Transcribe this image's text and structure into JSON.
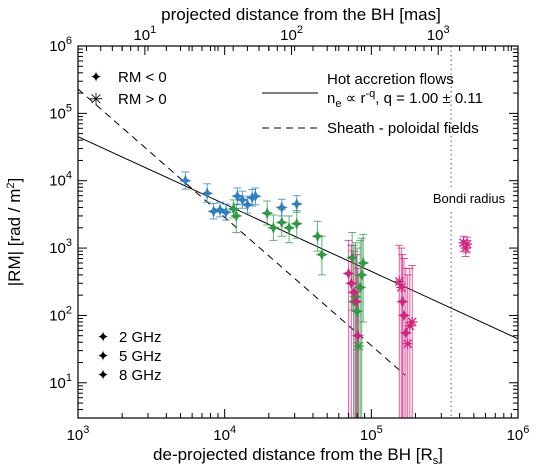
{
  "chart_data": {
    "type": "scatter",
    "title": "",
    "xlabel": "de-projected distance from the BH [R",
    "xlabel_sub": "s",
    "xlabel_end": "]",
    "x2label": "projected distance from the BH [mas]",
    "ylabel": "|RM| [rad / m",
    "ylabel_sup": "2",
    "ylabel_end": "]",
    "xscale": "log",
    "yscale": "log",
    "xlim": [
      1000,
      1000000
    ],
    "ylim": [
      3,
      1000000
    ],
    "x2lim": [
      3.5,
      3500
    ],
    "xticks": [
      {
        "value": 1000,
        "base": "10",
        "exp": "3"
      },
      {
        "value": 10000,
        "base": "10",
        "exp": "4"
      },
      {
        "value": 100000,
        "base": "10",
        "exp": "5"
      },
      {
        "value": 1000000,
        "base": "10",
        "exp": "6"
      }
    ],
    "yticks": [
      {
        "value": 10,
        "base": "10",
        "exp": "1"
      },
      {
        "value": 100,
        "base": "10",
        "exp": "2"
      },
      {
        "value": 1000,
        "base": "10",
        "exp": "3"
      },
      {
        "value": 10000,
        "base": "10",
        "exp": "4"
      },
      {
        "value": 100000,
        "base": "10",
        "exp": "5"
      },
      {
        "value": 1000000,
        "base": "10",
        "exp": "6"
      }
    ],
    "x2ticks": [
      {
        "value": 10,
        "base": "10",
        "exp": "1"
      },
      {
        "value": 100,
        "base": "10",
        "exp": "2"
      },
      {
        "value": 1000,
        "base": "10",
        "exp": "3"
      }
    ],
    "symbol_legend": [
      {
        "marker": "filled-star",
        "label": "RM < 0"
      },
      {
        "marker": "asterisk",
        "label": "RM > 0"
      }
    ],
    "line_legend": [
      {
        "style": "solid",
        "label": "Hot accretion flows",
        "formula": "n",
        "formula_sub": "e",
        "formula_rest": " ∝ r",
        "formula_sup": "-q",
        "formula_tail": ", q =  1.00 ± 0.11"
      },
      {
        "style": "dashed",
        "label": "Sheath - poloidal fields"
      }
    ],
    "color_legend": [
      {
        "label": "2 GHz",
        "color": "#d4237d"
      },
      {
        "label": "5 GHz",
        "color": "#2e9a46"
      },
      {
        "label": "8 GHz",
        "color": "#2f7fc1"
      }
    ],
    "bondi_label": "Bondi radius",
    "bondi_x": 350000,
    "model_lines": [
      {
        "style": "solid",
        "x": [
          1000,
          1000000
        ],
        "y": [
          45000,
          45
        ]
      },
      {
        "style": "dashed",
        "x": [
          1000,
          170000
        ],
        "y": [
          230000,
          13
        ]
      }
    ],
    "series": [
      {
        "name": "8 GHz",
        "color": "#2f7fc1",
        "points": [
          {
            "x": 5400,
            "y": 10000,
            "lo": 7500,
            "hi": 13500,
            "marker": "filled-star"
          },
          {
            "x": 7600,
            "y": 6500,
            "lo": 4800,
            "hi": 9000,
            "marker": "filled-star"
          },
          {
            "x": 8400,
            "y": 3500,
            "lo": 2700,
            "hi": 4600,
            "marker": "filled-star"
          },
          {
            "x": 9300,
            "y": 3700,
            "lo": 2900,
            "hi": 4800,
            "marker": "filled-star"
          },
          {
            "x": 10200,
            "y": 3400,
            "lo": 2600,
            "hi": 4500,
            "marker": "filled-star"
          },
          {
            "x": 12200,
            "y": 5900,
            "lo": 4400,
            "hi": 7800,
            "marker": "filled-star"
          },
          {
            "x": 13200,
            "y": 5200,
            "lo": 3900,
            "hi": 7000,
            "marker": "filled-star"
          },
          {
            "x": 14300,
            "y": 4400,
            "lo": 3300,
            "hi": 5900,
            "marker": "filled-star"
          },
          {
            "x": 15400,
            "y": 5600,
            "lo": 4200,
            "hi": 7400,
            "marker": "filled-star"
          },
          {
            "x": 16200,
            "y": 5900,
            "lo": 4400,
            "hi": 7800,
            "marker": "filled-star"
          },
          {
            "x": 24500,
            "y": 4000,
            "lo": 3000,
            "hi": 5300,
            "marker": "filled-star"
          },
          {
            "x": 31000,
            "y": 4500,
            "lo": 3400,
            "hi": 6000,
            "marker": "filled-star"
          }
        ]
      },
      {
        "name": "5 GHz",
        "color": "#2e9a46",
        "points": [
          {
            "x": 11500,
            "y": 3800,
            "lo": 2800,
            "hi": 5200,
            "marker": "filled-star"
          },
          {
            "x": 12000,
            "y": 3000,
            "lo": 1700,
            "hi": 4500,
            "marker": "filled-star"
          },
          {
            "x": 19500,
            "y": 3300,
            "lo": 2200,
            "hi": 5000,
            "marker": "filled-star"
          },
          {
            "x": 21500,
            "y": 2000,
            "lo": 1300,
            "hi": 3100,
            "marker": "filled-star"
          },
          {
            "x": 24500,
            "y": 2400,
            "lo": 1500,
            "hi": 3700,
            "marker": "filled-star"
          },
          {
            "x": 27500,
            "y": 2000,
            "lo": 1200,
            "hi": 3000,
            "marker": "filled-star"
          },
          {
            "x": 31000,
            "y": 2300,
            "lo": 1400,
            "hi": 3600,
            "marker": "filled-star"
          },
          {
            "x": 43000,
            "y": 1500,
            "lo": 900,
            "hi": 2500,
            "marker": "filled-star"
          },
          {
            "x": 46000,
            "y": 800,
            "lo": 400,
            "hi": 1500,
            "marker": "filled-star"
          },
          {
            "x": 74000,
            "y": 720,
            "lo": 120,
            "hi": 1700,
            "marker": "filled-star"
          },
          {
            "x": 76000,
            "y": 160,
            "lo": 3,
            "hi": 1100,
            "marker": "filled-star"
          },
          {
            "x": 78000,
            "y": 190,
            "lo": 3,
            "hi": 1200,
            "marker": "filled-star"
          },
          {
            "x": 80000,
            "y": 115,
            "lo": 3,
            "hi": 1000,
            "marker": "filled-star"
          },
          {
            "x": 82000,
            "y": 35,
            "lo": 3,
            "hi": 400,
            "marker": "asterisk"
          },
          {
            "x": 84000,
            "y": 260,
            "lo": 3,
            "hi": 1300,
            "marker": "filled-star"
          },
          {
            "x": 86000,
            "y": 400,
            "lo": 3,
            "hi": 1400,
            "marker": "filled-star"
          },
          {
            "x": 88000,
            "y": 600,
            "lo": 80,
            "hi": 1600,
            "marker": "filled-star"
          }
        ]
      },
      {
        "name": "2 GHz",
        "color": "#d4237d",
        "points": [
          {
            "x": 70000,
            "y": 420,
            "lo": 3,
            "hi": 1300,
            "marker": "filled-star"
          },
          {
            "x": 73000,
            "y": 300,
            "lo": 3,
            "hi": 1100,
            "marker": "filled-star"
          },
          {
            "x": 76000,
            "y": 220,
            "lo": 3,
            "hi": 900,
            "marker": "filled-star"
          },
          {
            "x": 79000,
            "y": 160,
            "lo": 3,
            "hi": 800,
            "marker": "filled-star"
          },
          {
            "x": 81000,
            "y": 50,
            "lo": 3,
            "hi": 500,
            "marker": "filled-star"
          },
          {
            "x": 155000,
            "y": 320,
            "lo": 3,
            "hi": 1100,
            "marker": "asterisk"
          },
          {
            "x": 160000,
            "y": 260,
            "lo": 3,
            "hi": 1000,
            "marker": "asterisk"
          },
          {
            "x": 163000,
            "y": 160,
            "lo": 3,
            "hi": 800,
            "marker": "filled-star"
          },
          {
            "x": 167000,
            "y": 100,
            "lo": 3,
            "hi": 700,
            "marker": "filled-star"
          },
          {
            "x": 172000,
            "y": 55,
            "lo": 3,
            "hi": 500,
            "marker": "filled-star"
          },
          {
            "x": 177000,
            "y": 38,
            "lo": 3,
            "hi": 400,
            "marker": "asterisk"
          },
          {
            "x": 183000,
            "y": 70,
            "lo": 3,
            "hi": 500,
            "marker": "asterisk"
          },
          {
            "x": 190000,
            "y": 80,
            "lo": 3,
            "hi": 550,
            "marker": "asterisk"
          },
          {
            "x": 425000,
            "y": 1200,
            "lo": 900,
            "hi": 1500,
            "marker": "asterisk"
          },
          {
            "x": 440000,
            "y": 1000,
            "lo": 750,
            "hi": 1300,
            "marker": "asterisk"
          },
          {
            "x": 450000,
            "y": 1150,
            "lo": 850,
            "hi": 1450,
            "marker": "asterisk"
          }
        ]
      }
    ]
  }
}
